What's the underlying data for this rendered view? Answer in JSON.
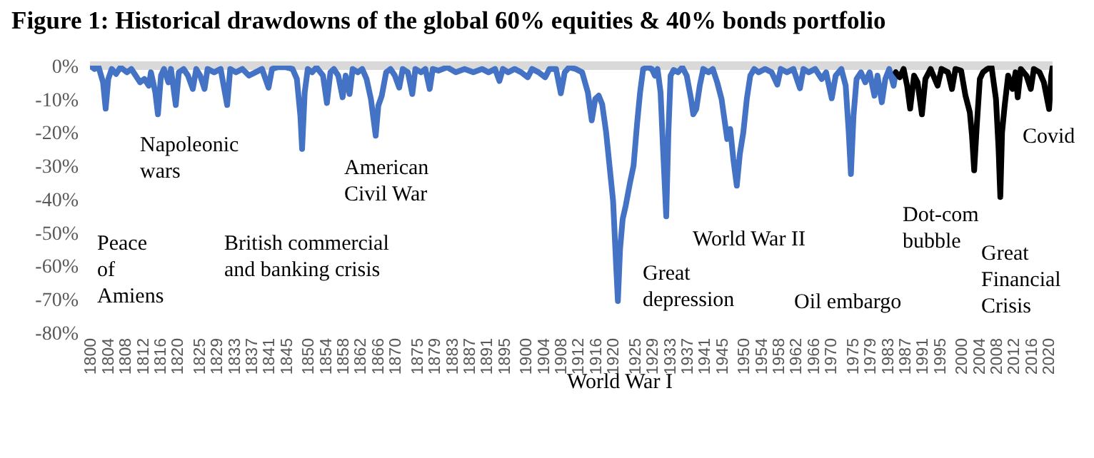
{
  "chart_data": {
    "type": "line",
    "title": "Figure 1: Historical drawdowns of the global 60% equities & 40% bonds portfolio",
    "xlim": [
      1800,
      2021
    ],
    "xticks": [
      1800,
      1804,
      1808,
      1812,
      1816,
      1820,
      1825,
      1829,
      1833,
      1837,
      1841,
      1845,
      1850,
      1854,
      1858,
      1862,
      1866,
      1870,
      1875,
      1879,
      1883,
      1887,
      1891,
      1895,
      1900,
      1904,
      1908,
      1912,
      1916,
      1920,
      1925,
      1929,
      1933,
      1937,
      1941,
      1945,
      1950,
      1954,
      1958,
      1962,
      1966,
      1970,
      1975,
      1979,
      1983,
      1987,
      1991,
      1995,
      2000,
      2004,
      2008,
      2012,
      2016,
      2020
    ],
    "ylim": [
      -80,
      0
    ],
    "yticks": [
      {
        "value": 0,
        "label": "0%"
      },
      {
        "value": -10,
        "label": "-10%"
      },
      {
        "value": -20,
        "label": "-20%"
      },
      {
        "value": -30,
        "label": "-30%"
      },
      {
        "value": -40,
        "label": "-40%"
      },
      {
        "value": -50,
        "label": "-50%"
      },
      {
        "value": -60,
        "label": "-60%"
      },
      {
        "value": -70,
        "label": "-70%"
      },
      {
        "value": -80,
        "label": "-80%"
      }
    ],
    "ref_lines": [
      {
        "axis": "y",
        "value": 0,
        "color": "#d9d9d9"
      }
    ],
    "line_style": "solid",
    "marker": "none",
    "series": [
      {
        "color": "#4472c4",
        "x": [
          1800,
          1801,
          1802,
          1803,
          1803.6,
          1804.2,
          1805,
          1806,
          1807,
          1808.5,
          1809.5,
          1810.5,
          1811.5,
          1812.5,
          1813.5,
          1814,
          1815,
          1815.6,
          1816.3,
          1817,
          1818,
          1818.6,
          1819.7,
          1820.4,
          1821.5,
          1822.5,
          1823.6,
          1824.4,
          1825.3,
          1826.3,
          1827,
          1828.5,
          1830,
          1831.5,
          1832.2,
          1833.5,
          1835,
          1836.5,
          1838,
          1839.5,
          1841,
          1841.8,
          1843,
          1845,
          1846.5,
          1847.5,
          1848.3,
          1848.7,
          1849.3,
          1850,
          1851,
          1852,
          1853.5,
          1854.4,
          1855.2,
          1856,
          1857,
          1858,
          1858.7,
          1859.6,
          1860.3,
          1861.5,
          1862.5,
          1863.5,
          1864.5,
          1865.3,
          1865.6,
          1866.2,
          1867,
          1868,
          1869,
          1870,
          1871,
          1871.8,
          1873,
          1874,
          1874.7,
          1876,
          1877,
          1878,
          1878.7,
          1880,
          1882,
          1884,
          1886,
          1888,
          1890,
          1891.5,
          1893,
          1894,
          1894.8,
          1896,
          1897.5,
          1899,
          1900.5,
          1901.5,
          1903,
          1904.5,
          1905.5,
          1907,
          1908.1,
          1909,
          1910,
          1911.5,
          1913,
          1914.3,
          1915.2,
          1916,
          1916.8,
          1917.6,
          1918.5,
          1920.1,
          1920.8,
          1921.2,
          1921.7,
          1922.3,
          1923,
          1924,
          1924.8,
          1925.6,
          1926.3,
          1927,
          1928,
          1929,
          1929.7,
          1930.3,
          1931,
          1931.5,
          1932.3,
          1932.8,
          1933.3,
          1934,
          1935,
          1936,
          1937,
          1938,
          1938.5,
          1939.2,
          1940,
          1940.8,
          1942,
          1943,
          1944,
          1945,
          1946.3,
          1947,
          1947.7,
          1948.5,
          1949.2,
          1950,
          1950.8,
          1951.6,
          1952.5,
          1953.5,
          1955,
          1956.5,
          1957.8,
          1958.6,
          1960,
          1961.5,
          1963,
          1963.8,
          1965,
          1966.5,
          1968,
          1969,
          1970.3,
          1971.2,
          1972.5,
          1973.5,
          1974.2,
          1974.7,
          1975.3,
          1976,
          1977,
          1978,
          1979,
          1980.1,
          1980.8,
          1981.8,
          1982.6,
          1983.5,
          1984.5,
          1985
        ],
        "values": [
          0,
          -1,
          -0.5,
          -5,
          -12.9,
          -4,
          -1,
          -2.5,
          -0.5,
          -2,
          -1,
          -3,
          -5,
          -4,
          -6,
          -2,
          -8,
          -14.6,
          -3,
          -1,
          -5,
          -1,
          -11.8,
          -2,
          -1,
          -3,
          -7,
          -1,
          -3,
          -7,
          -1,
          -2,
          -1,
          -11.8,
          -1,
          -2,
          -1,
          -3,
          -2,
          -1,
          -6.6,
          -1,
          -0.5,
          -0.5,
          -1,
          -4,
          -15,
          -25,
          -8,
          -1,
          -2,
          -0.5,
          -3,
          -11.2,
          -2,
          -1,
          -3,
          -9.5,
          -3,
          -8.5,
          -1,
          -2,
          -1,
          -4,
          -10,
          -18,
          -21,
          -12,
          -9,
          -2,
          -1,
          -3,
          -6.6,
          -1,
          -2,
          -8.5,
          -1,
          -2,
          -1,
          -7,
          -1,
          -1.5,
          -0.5,
          -2,
          -1,
          -2,
          -1,
          -2,
          -1,
          -4.6,
          -1,
          -2,
          -1,
          -2,
          -3.5,
          -1,
          -2,
          -3.5,
          -1,
          -1,
          -8.3,
          -2,
          -0.5,
          -1,
          -2,
          -8,
          -16.4,
          -10,
          -9,
          -11.6,
          -20,
          -40.6,
          -60,
          -70.6,
          -55,
          -46,
          -42,
          -35,
          -30,
          -17.5,
          -8,
          -1,
          -0.5,
          -1,
          -3,
          -1,
          -8,
          -23,
          -45.2,
          -20,
          -3,
          -1.3,
          -2,
          -0.5,
          -3,
          -10,
          -14.6,
          -13,
          -6,
          -1,
          -2,
          -1,
          -5,
          -10,
          -22,
          -19,
          -28,
          -36,
          -26.5,
          -20,
          -10,
          -3,
          -1,
          -2,
          -1,
          -2,
          -5.7,
          -1,
          -2,
          -1,
          -6.8,
          -1,
          -2,
          -1,
          -4,
          -2,
          -9.8,
          -3,
          -1,
          -6,
          -20,
          -32.5,
          -15,
          -4,
          -2,
          -5,
          -2,
          -9,
          -3,
          -11,
          -4,
          -1,
          -6,
          -2
        ]
      },
      {
        "color": "#000000",
        "x": [
          1985,
          1985.9,
          1986.8,
          1987.6,
          1988.3,
          1989.2,
          1990,
          1991,
          1991.8,
          1993,
          1994.6,
          1995.5,
          1997,
          1997.9,
          1998.7,
          2000,
          2001,
          2002,
          2002.5,
          2003,
          2003.6,
          2004.3,
          2005,
          2006,
          2007,
          2008,
          2008.6,
          2009,
          2009.4,
          2010,
          2010.8,
          2011.8,
          2012.5,
          2013,
          2013.7,
          2015,
          2016,
          2016.7,
          2018,
          2019,
          2020.2,
          2020.7,
          2021
        ],
        "values": [
          -2,
          -3.5,
          -1,
          -6,
          -12.9,
          -3,
          -5,
          -14.6,
          -4,
          -1,
          -6,
          -1,
          -2,
          -7,
          -1,
          -1.5,
          -9,
          -14,
          -21,
          -31.4,
          -18,
          -4,
          -2,
          -1,
          -0.5,
          -10,
          -25,
          -39.4,
          -20,
          -12,
          -3,
          -7,
          -2,
          -9.5,
          -1,
          -3,
          -7,
          -1,
          -2,
          -5,
          -13,
          -3,
          -0.5
        ]
      }
    ],
    "annotations": [
      "Peace of Amiens",
      "Napoleonic wars",
      "British commercial and banking crisis",
      "American Civil War",
      "World War I",
      "Great depression",
      "World War II",
      "Oil embargo",
      "Dot-com bubble",
      "Great Financial Crisis",
      "Covid"
    ]
  }
}
